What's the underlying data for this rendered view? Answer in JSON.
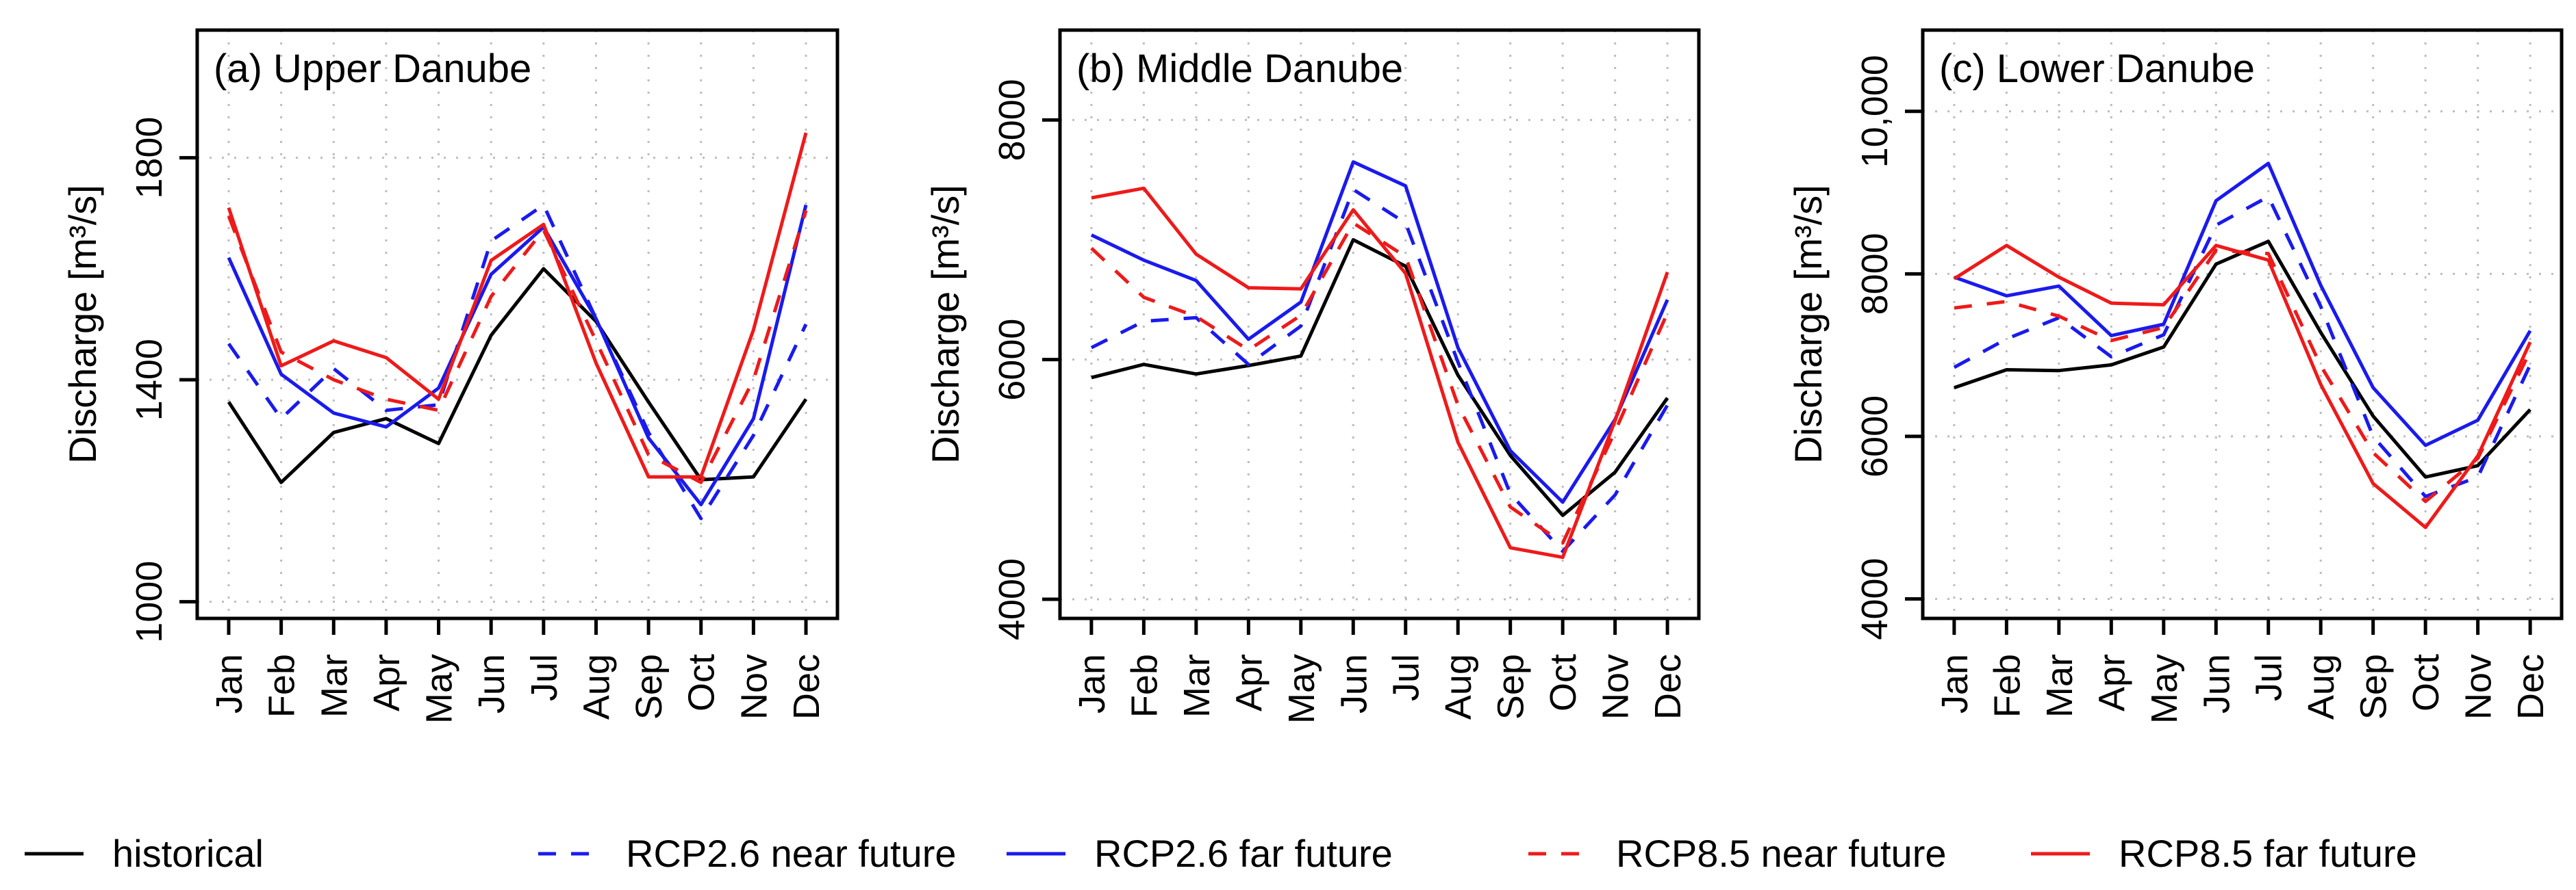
{
  "chart_data": [
    {
      "type": "line",
      "title": "(a) Upper Danube",
      "ylabel": "Discharge [m³/s]",
      "ylim": [
        970,
        2030
      ],
      "yticks": [
        1000,
        1400,
        1800
      ],
      "ytick_labels": [
        "1000",
        "1400",
        "1800"
      ],
      "grid": true,
      "categories": [
        "Jan",
        "Feb",
        "Mar",
        "Apr",
        "May",
        "Jun",
        "Jul",
        "Aug",
        "Sep",
        "Oct",
        "Nov",
        "Dec"
      ],
      "series": [
        {
          "name": "historical",
          "values": [
            1360,
            1215,
            1305,
            1330,
            1285,
            1480,
            1600,
            1505,
            1360,
            1220,
            1225,
            1365
          ]
        },
        {
          "name": "RCP2.6 near future",
          "values": [
            1465,
            1330,
            1420,
            1345,
            1355,
            1650,
            1715,
            1510,
            1305,
            1150,
            1300,
            1500
          ]
        },
        {
          "name": "RCP2.6 far future",
          "values": [
            1620,
            1410,
            1340,
            1315,
            1385,
            1590,
            1675,
            1510,
            1295,
            1175,
            1330,
            1715
          ]
        },
        {
          "name": "RCP8.5 near future",
          "values": [
            1695,
            1450,
            1400,
            1365,
            1345,
            1550,
            1670,
            1470,
            1265,
            1215,
            1400,
            1705
          ]
        },
        {
          "name": "RCP8.5 far future",
          "values": [
            1710,
            1425,
            1470,
            1440,
            1365,
            1615,
            1680,
            1430,
            1225,
            1225,
            1490,
            1845
          ]
        }
      ]
    },
    {
      "type": "line",
      "title": "(b) Middle Danube",
      "ylabel": "Discharge [m³/s]",
      "ylim": [
        3840,
        8750
      ],
      "yticks": [
        4000,
        6000,
        8000
      ],
      "ytick_labels": [
        "4000",
        "6000",
        "8000"
      ],
      "grid": true,
      "categories": [
        "Jan",
        "Feb",
        "Mar",
        "Apr",
        "May",
        "Jun",
        "Jul",
        "Aug",
        "Sep",
        "Oct",
        "Nov",
        "Dec"
      ],
      "series": [
        {
          "name": "historical",
          "values": [
            5850,
            5960,
            5880,
            5950,
            6030,
            7000,
            6780,
            5870,
            5200,
            4700,
            5060,
            5680
          ]
        },
        {
          "name": "RCP2.6 near future",
          "values": [
            6100,
            6320,
            6350,
            5960,
            6280,
            7420,
            7140,
            5980,
            4880,
            4400,
            4870,
            5620
          ]
        },
        {
          "name": "RCP2.6 far future",
          "values": [
            7040,
            6830,
            6660,
            6170,
            6480,
            7650,
            7450,
            6100,
            5240,
            4810,
            5500,
            6500
          ]
        },
        {
          "name": "RCP8.5 near future",
          "values": [
            6930,
            6520,
            6360,
            6080,
            6370,
            7140,
            6860,
            5620,
            4770,
            4470,
            5400,
            6390
          ]
        },
        {
          "name": "RCP8.5 far future",
          "values": [
            7350,
            7430,
            6880,
            6600,
            6590,
            7250,
            6720,
            5310,
            4430,
            4350,
            5490,
            6730
          ]
        }
      ]
    },
    {
      "type": "line",
      "title": "(c) Lower Danube",
      "ylabel": "Discharge [m³/s]",
      "ylim": [
        3760,
        11000
      ],
      "yticks": [
        4000,
        6000,
        8000,
        10000
      ],
      "ytick_labels": [
        "4000",
        "6000",
        "8000",
        "10,000"
      ],
      "grid": true,
      "categories": [
        "Jan",
        "Feb",
        "Mar",
        "Apr",
        "May",
        "Jun",
        "Jul",
        "Aug",
        "Sep",
        "Oct",
        "Nov",
        "Dec"
      ],
      "series": [
        {
          "name": "historical",
          "values": [
            6600,
            6820,
            6810,
            6880,
            7100,
            8120,
            8400,
            7280,
            6250,
            5500,
            5640,
            6330
          ]
        },
        {
          "name": "RCP2.6 near future",
          "values": [
            6850,
            7200,
            7460,
            6980,
            7250,
            8600,
            8950,
            7600,
            6000,
            5260,
            5500,
            6880
          ]
        },
        {
          "name": "RCP2.6 far future",
          "values": [
            7960,
            7730,
            7850,
            7240,
            7380,
            8900,
            9360,
            7860,
            6600,
            5890,
            6200,
            7300
          ]
        },
        {
          "name": "RCP8.5 near future",
          "values": [
            7580,
            7660,
            7480,
            7180,
            7340,
            8290,
            8250,
            6870,
            5800,
            5200,
            5730,
            7050
          ]
        },
        {
          "name": "RCP8.5 far future",
          "values": [
            7940,
            8350,
            7960,
            7640,
            7620,
            8350,
            8170,
            6640,
            5420,
            4880,
            5760,
            7160
          ]
        }
      ]
    }
  ],
  "legend": {
    "placement": "bottom",
    "entries": [
      {
        "label": "historical",
        "color": "#000000",
        "dashed": false
      },
      {
        "label": "RCP2.6 near future",
        "color": "#1a1aee",
        "dashed": true
      },
      {
        "label": "RCP2.6 far future",
        "color": "#1a1aee",
        "dashed": false
      },
      {
        "label": "RCP8.5 near future",
        "color": "#ee1a1a",
        "dashed": true
      },
      {
        "label": "RCP8.5 far future",
        "color": "#ee1a1a",
        "dashed": false
      }
    ]
  },
  "series_styles": {
    "historical": {
      "color": "#000000",
      "dashed": false
    },
    "RCP2.6 near future": {
      "color": "#1a1aee",
      "dashed": true
    },
    "RCP2.6 far future": {
      "color": "#1a1aee",
      "dashed": false
    },
    "RCP8.5 near future": {
      "color": "#ee1a1a",
      "dashed": true
    },
    "RCP8.5 far future": {
      "color": "#ee1a1a",
      "dashed": false
    }
  }
}
